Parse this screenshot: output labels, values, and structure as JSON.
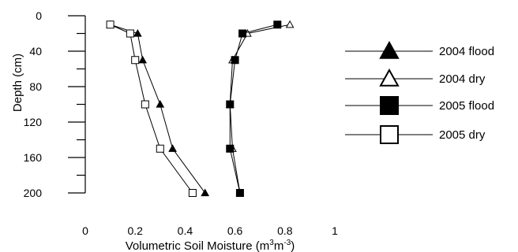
{
  "chart_data": {
    "type": "scatter",
    "xlabel_main": "Volumetric Soil Moisture (m",
    "xlabel_sup1": "3",
    "xlabel_mid": "m",
    "xlabel_sup2": "-3",
    "xlabel_end": ")",
    "ylabel": "Depth (cm)",
    "xlim": [
      0,
      1
    ],
    "ylim": [
      0,
      200
    ],
    "y_inverted": true,
    "x_ticks": [
      "0",
      "0.2",
      "0.4",
      "0.6",
      "0.8",
      "1"
    ],
    "y_ticks": [
      "0",
      "40",
      "80",
      "120",
      "160",
      "200"
    ],
    "legend_position": "right",
    "series": [
      {
        "name": "2004 flood",
        "marker": "filled-triangle",
        "points": [
          [
            0.1,
            10
          ],
          [
            0.21,
            20
          ],
          [
            0.23,
            50
          ],
          [
            0.3,
            100
          ],
          [
            0.35,
            150
          ],
          [
            0.48,
            200
          ]
        ]
      },
      {
        "name": "2004 dry",
        "marker": "open-triangle",
        "points": [
          [
            0.82,
            10
          ],
          [
            0.65,
            20
          ],
          [
            0.59,
            50
          ],
          [
            0.58,
            100
          ],
          [
            0.59,
            150
          ],
          [
            0.62,
            200
          ]
        ]
      },
      {
        "name": "2005 flood",
        "marker": "filled-square",
        "points": [
          [
            0.77,
            10
          ],
          [
            0.63,
            20
          ],
          [
            0.6,
            50
          ],
          [
            0.58,
            100
          ],
          [
            0.58,
            150
          ],
          [
            0.62,
            200
          ]
        ]
      },
      {
        "name": "2005 dry",
        "marker": "open-square",
        "points": [
          [
            0.1,
            10
          ],
          [
            0.18,
            20
          ],
          [
            0.2,
            50
          ],
          [
            0.24,
            100
          ],
          [
            0.3,
            150
          ],
          [
            0.43,
            200
          ]
        ]
      }
    ]
  }
}
